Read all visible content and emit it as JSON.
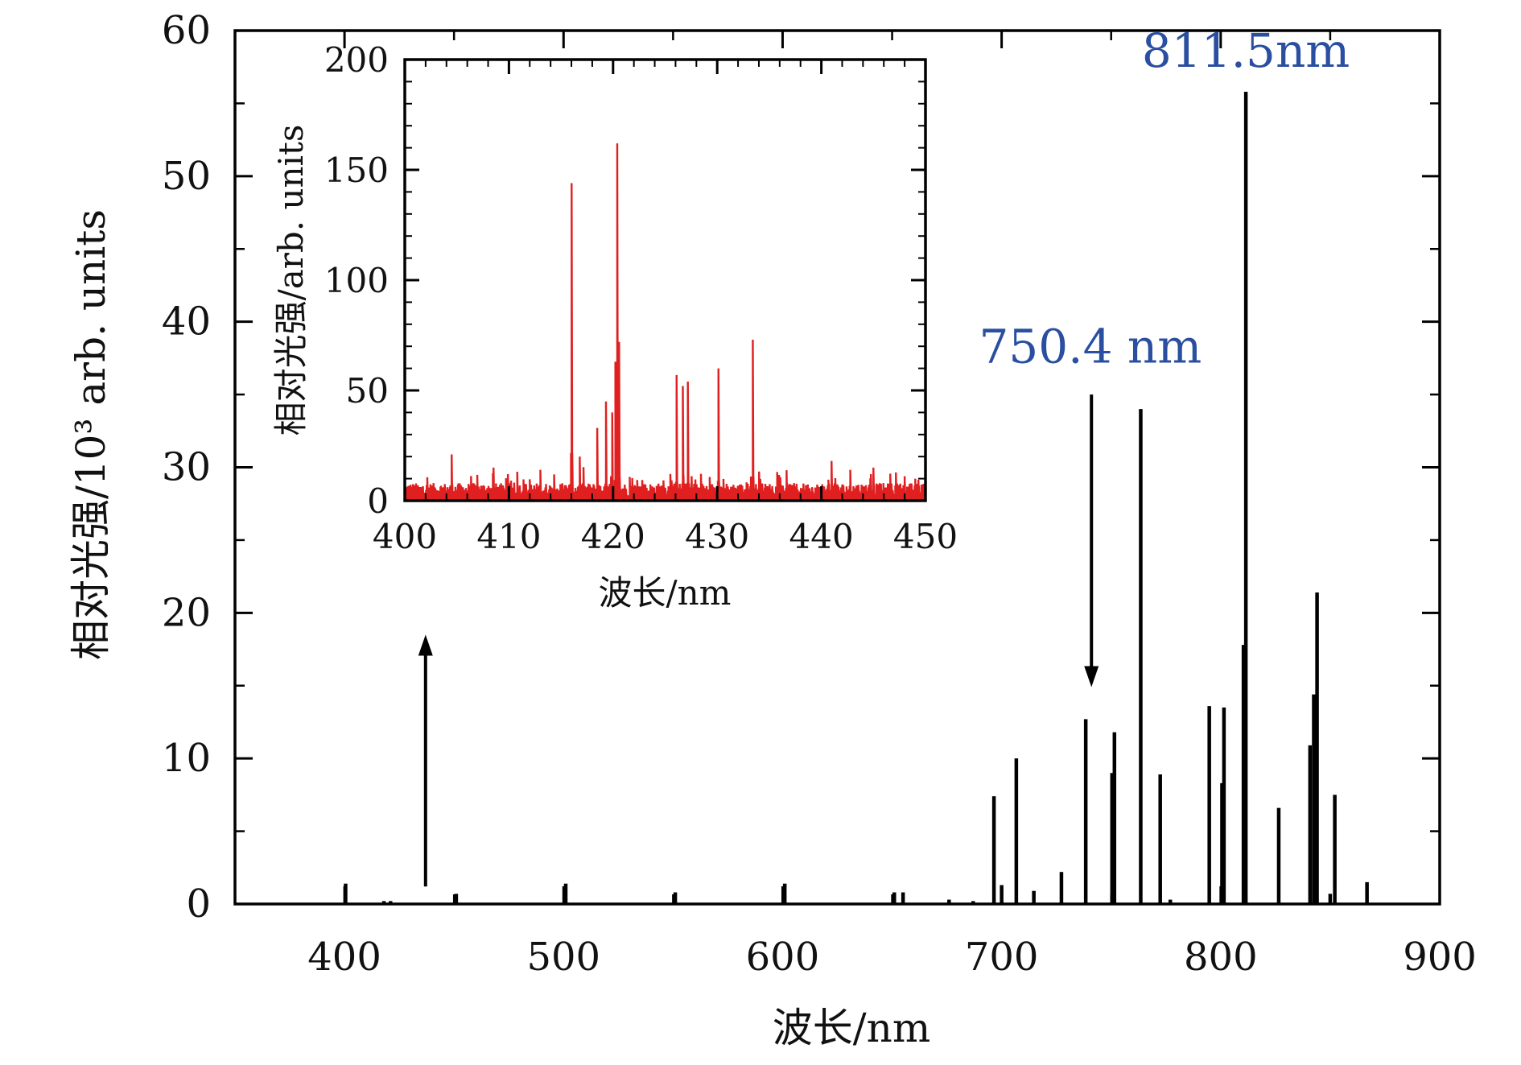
{
  "chart_data": [
    {
      "type": "line",
      "name": "main-spectrum",
      "title": "",
      "xlabel": "波长/nm",
      "ylabel": "相对光强/10³ arb. units",
      "xlim": [
        350,
        900
      ],
      "ylim": [
        0,
        60
      ],
      "xticks": [
        400,
        500,
        600,
        700,
        800,
        900
      ],
      "yticks": [
        0,
        10,
        20,
        30,
        40,
        50,
        60
      ],
      "xtick_labels": [
        "400",
        "500",
        "600",
        "700",
        "800",
        "900"
      ],
      "ytick_labels": [
        "0",
        "10",
        "20",
        "30",
        "40",
        "50",
        "60"
      ],
      "color": "#000000",
      "series": [
        {
          "name": "spectrum",
          "peaks": [
            {
              "x": 400.5,
              "y": 1.4
            },
            {
              "x": 418,
              "y": 0.2
            },
            {
              "x": 421,
              "y": 0.2
            },
            {
              "x": 451,
              "y": 0.7
            },
            {
              "x": 501,
              "y": 1.4
            },
            {
              "x": 551,
              "y": 0.8
            },
            {
              "x": 601,
              "y": 1.4
            },
            {
              "x": 651,
              "y": 0.8
            },
            {
              "x": 655,
              "y": 0.8
            },
            {
              "x": 676,
              "y": 0.3
            },
            {
              "x": 687,
              "y": 0.2
            },
            {
              "x": 696.5,
              "y": 7.4
            },
            {
              "x": 700,
              "y": 1.3
            },
            {
              "x": 706.7,
              "y": 10.0
            },
            {
              "x": 714.7,
              "y": 0.9
            },
            {
              "x": 727.3,
              "y": 2.2
            },
            {
              "x": 738.4,
              "y": 12.7
            },
            {
              "x": 750.4,
              "y": 9.0
            },
            {
              "x": 751.5,
              "y": 11.8
            },
            {
              "x": 763.5,
              "y": 34.0
            },
            {
              "x": 772.4,
              "y": 8.9
            },
            {
              "x": 777,
              "y": 0.3
            },
            {
              "x": 794.8,
              "y": 13.6
            },
            {
              "x": 800.6,
              "y": 8.3
            },
            {
              "x": 801.5,
              "y": 13.5
            },
            {
              "x": 810.4,
              "y": 17.8
            },
            {
              "x": 811.5,
              "y": 55.8
            },
            {
              "x": 826.5,
              "y": 6.6
            },
            {
              "x": 840.8,
              "y": 10.9
            },
            {
              "x": 842.5,
              "y": 14.4
            },
            {
              "x": 844,
              "y": 21.4
            },
            {
              "x": 850,
              "y": 0.7
            },
            {
              "x": 852.1,
              "y": 7.5
            },
            {
              "x": 866.8,
              "y": 1.5
            }
          ]
        }
      ],
      "annotations": [
        {
          "text": "811.5nm",
          "x": 811.5,
          "y": 57.5,
          "color": "#2a4fa0"
        },
        {
          "text": "750.4 nm",
          "x": 740.5,
          "y": 37.2,
          "color": "#2a4fa0"
        },
        {
          "type": "arrow",
          "from": [
            741,
            35
          ],
          "to": [
            741,
            14.9
          ],
          "direction": "down"
        },
        {
          "type": "arrow",
          "from": [
            437,
            1.2
          ],
          "to": [
            437,
            18.5
          ],
          "direction": "up",
          "note": "points to inset"
        }
      ]
    },
    {
      "type": "line",
      "name": "inset-spectrum",
      "title": "",
      "xlabel": "波长/nm",
      "ylabel": "相对光强/arb. units",
      "xlim": [
        400,
        450
      ],
      "ylim": [
        0,
        200
      ],
      "xticks": [
        400,
        410,
        420,
        430,
        440,
        450
      ],
      "yticks": [
        0,
        50,
        100,
        150,
        200
      ],
      "xtick_labels": [
        "400",
        "410",
        "420",
        "430",
        "440",
        "450"
      ],
      "ytick_labels": [
        "0",
        "50",
        "100",
        "150",
        "200"
      ],
      "color": "#e02020",
      "series": [
        {
          "name": "inset-spectrum",
          "noise_level": 6,
          "peaks": [
            {
              "x": 404.5,
              "y": 21
            },
            {
              "x": 408.5,
              "y": 15
            },
            {
              "x": 413,
              "y": 14
            },
            {
              "x": 416,
              "y": 144
            },
            {
              "x": 416.8,
              "y": 20
            },
            {
              "x": 418.5,
              "y": 33
            },
            {
              "x": 419.3,
              "y": 45
            },
            {
              "x": 419.9,
              "y": 40
            },
            {
              "x": 420.2,
              "y": 63
            },
            {
              "x": 420.4,
              "y": 162
            },
            {
              "x": 420.6,
              "y": 72
            },
            {
              "x": 426.1,
              "y": 57
            },
            {
              "x": 426.7,
              "y": 52
            },
            {
              "x": 427.2,
              "y": 54
            },
            {
              "x": 430.1,
              "y": 60
            },
            {
              "x": 433.4,
              "y": 73
            },
            {
              "x": 441,
              "y": 18
            },
            {
              "x": 445,
              "y": 15
            },
            {
              "x": 449,
              "y": 10
            }
          ]
        }
      ]
    }
  ]
}
